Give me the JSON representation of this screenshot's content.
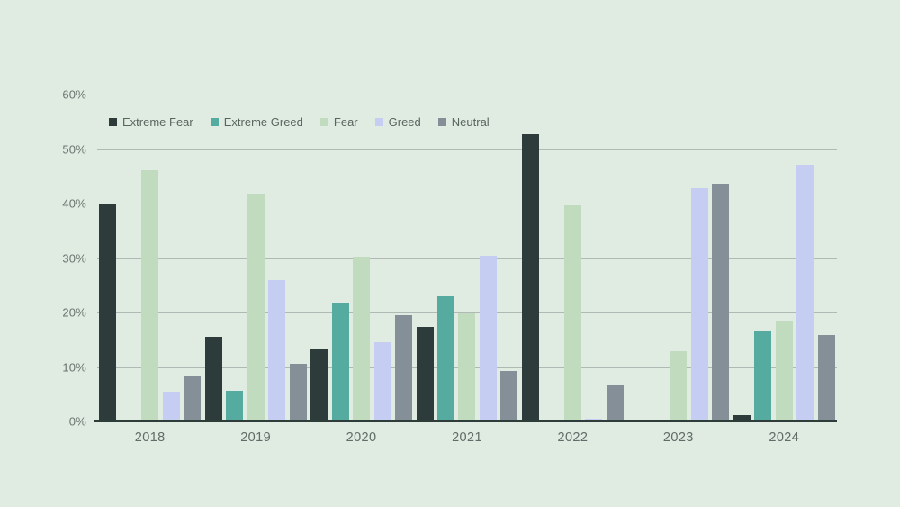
{
  "page": {
    "background_color": "#e0ebe2",
    "axis_line_color": "#2e3d3a",
    "gridline_color": "#9faaa4",
    "axis_text_color": "#5e6d67",
    "legend_text_color": "#57665f"
  },
  "chart_data": {
    "type": "bar",
    "title": "",
    "xlabel": "",
    "ylabel": "",
    "ylim": [
      0,
      60
    ],
    "grid": true,
    "legend_position": "top-left-inside",
    "yticks": [
      "0%",
      "10%",
      "20%",
      "30%",
      "40%",
      "50%",
      "60%"
    ],
    "categories": [
      "2018",
      "2019",
      "2020",
      "2021",
      "2022",
      "2023",
      "2024"
    ],
    "series": [
      {
        "name": "Extreme Fear",
        "color": "#2d3c3a",
        "values": [
          39.9,
          15.5,
          13.2,
          17.4,
          52.7,
          0,
          1.2
        ]
      },
      {
        "name": "Extreme Greed",
        "color": "#55ab9f",
        "values": [
          0,
          5.6,
          21.8,
          23.0,
          0,
          0,
          16.5
        ]
      },
      {
        "name": "Fear",
        "color": "#c0dbbd",
        "values": [
          46.1,
          41.8,
          30.2,
          19.8,
          39.7,
          12.9,
          18.5
        ]
      },
      {
        "name": "Greed",
        "color": "#c5cdf3",
        "values": [
          5.5,
          26.0,
          14.5,
          30.4,
          0.5,
          42.8,
          47.1
        ]
      },
      {
        "name": "Neutral",
        "color": "#858f97",
        "values": [
          8.4,
          10.6,
          19.5,
          9.3,
          6.8,
          43.6,
          15.9
        ]
      }
    ]
  }
}
